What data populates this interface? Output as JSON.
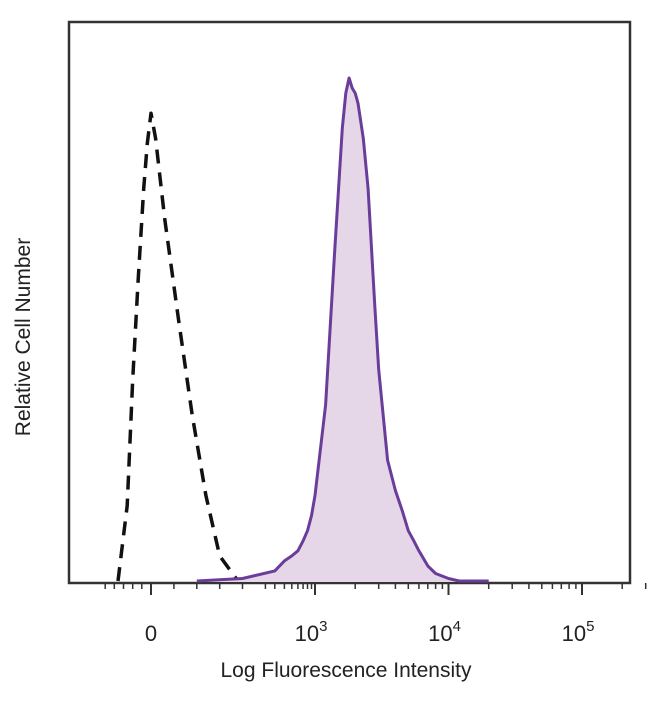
{
  "chart_data": {
    "type": "area",
    "title": "",
    "xlabel": "Log Fluorescence Intensity",
    "ylabel": "Relative Cell Number",
    "x_scale": "biexponential",
    "xlim": [
      -300,
      200000
    ],
    "ylim": [
      0,
      1
    ],
    "grid": false,
    "legend": "none",
    "x_ticks": [
      {
        "value": 0,
        "base": "0",
        "exp": ""
      },
      {
        "value": 1000,
        "base": "10",
        "exp": "3"
      },
      {
        "value": 10000,
        "base": "10",
        "exp": "4"
      },
      {
        "value": 100000,
        "base": "10",
        "exp": "5"
      }
    ],
    "series": [
      {
        "style": "dashed",
        "color": "#111111",
        "fill": "none",
        "x": [
          -180,
          -130,
          -100,
          -70,
          -40,
          -20,
          0,
          10,
          30,
          60,
          90,
          120,
          150,
          190
        ],
        "y": [
          0.0,
          0.15,
          0.4,
          0.6,
          0.78,
          0.87,
          0.93,
          0.88,
          0.72,
          0.52,
          0.33,
          0.17,
          0.05,
          0.0
        ]
      },
      {
        "style": "solid",
        "color": "#6a3d9a",
        "fill": "#e5d6e8",
        "x": [
          100,
          200,
          300,
          400,
          500,
          600,
          700,
          800,
          900,
          1000,
          1200,
          1400,
          1600,
          1700,
          1800,
          1900,
          2000,
          2100,
          2300,
          2500,
          2800,
          3000,
          3500,
          4000,
          4500,
          5000,
          5500,
          6000,
          7000,
          8000,
          10000,
          12000,
          20000
        ],
        "y": [
          0.0,
          0.005,
          0.02,
          0.04,
          0.05,
          0.06,
          0.08,
          0.1,
          0.13,
          0.17,
          0.35,
          0.65,
          0.9,
          0.97,
          1.0,
          0.98,
          0.97,
          0.95,
          0.88,
          0.78,
          0.55,
          0.42,
          0.24,
          0.18,
          0.14,
          0.1,
          0.08,
          0.06,
          0.03,
          0.015,
          0.005,
          0.0,
          0.0
        ]
      }
    ]
  }
}
